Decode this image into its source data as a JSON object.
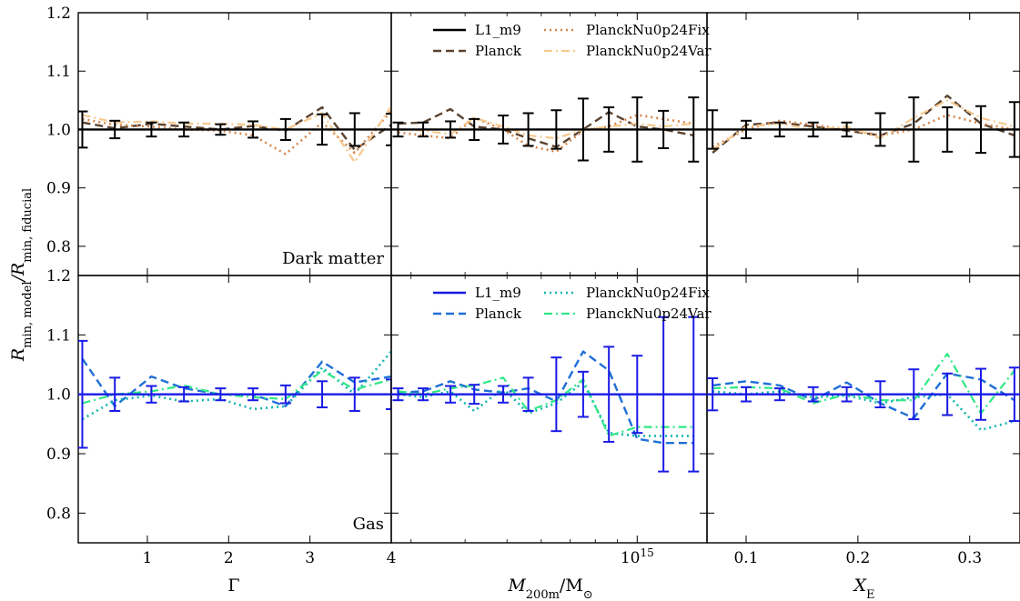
{
  "figure": {
    "ylabel_main": "R",
    "ylabel_sub": "min, model",
    "ylabel_mid": "/R",
    "ylabel_sub2": "min, fiducial",
    "colors": {
      "dm": {
        "L1_m9": "#000000",
        "Planck": "#5b4330",
        "PlanckNu0p24Fix": "#d5874d",
        "PlanckNu0p24Var": "#f6c98e"
      },
      "gas": {
        "L1_m9": "#1a1ae6",
        "Planck": "#1f6fd6",
        "PlanckNu0p24Fix": "#12b5b0",
        "PlanckNu0p24Var": "#2ee884"
      }
    }
  },
  "chart_data": [
    {
      "type": "line",
      "panel": "dark-matter-gamma",
      "row_label": "Dark matter",
      "xlabel": "",
      "ylabel": "",
      "xlim": [
        0.15,
        4.0
      ],
      "ylim": [
        0.75,
        1.2
      ],
      "x_scale": "linear",
      "x_ticks": [
        "1",
        "2",
        "3",
        "4"
      ],
      "y_ticks": [
        "0.8",
        "0.9",
        "1.0",
        "1.1",
        "1.2"
      ],
      "x": [
        0.2,
        0.6,
        1.05,
        1.45,
        1.9,
        2.3,
        2.7,
        3.15,
        3.55,
        4.0
      ],
      "series": [
        {
          "name": "L1_m9",
          "style": "solid",
          "values": [
            1.0,
            1.0,
            1.0,
            1.0,
            1.0,
            1.0,
            1.0,
            1.0,
            1.0,
            1.0
          ],
          "err": [
            0.031,
            0.015,
            0.012,
            0.012,
            0.009,
            0.014,
            0.018,
            0.026,
            0.028,
            0.027
          ]
        },
        {
          "name": "Planck",
          "style": "dashed",
          "values": [
            1.012,
            1.002,
            1.01,
            1.005,
            1.0,
            1.006,
            0.998,
            1.038,
            0.965,
            1.008
          ]
        },
        {
          "name": "PlanckNu0p24Fix",
          "style": "dotted",
          "values": [
            1.018,
            1.008,
            1.005,
            1.0,
            0.998,
            0.99,
            0.958,
            1.012,
            0.96,
            1.032
          ]
        },
        {
          "name": "PlanckNu0p24Var",
          "style": "dashdot",
          "values": [
            1.025,
            1.012,
            1.014,
            1.01,
            1.01,
            1.008,
            1.0,
            1.028,
            0.944,
            1.04
          ]
        }
      ]
    },
    {
      "type": "line",
      "panel": "dark-matter-mass",
      "row_label": "",
      "legend": "upper-center",
      "xlabel": "",
      "ylabel": "",
      "xlim": [
        270000000000000.0,
        1450000000000000.0
      ],
      "ylim": [
        0.75,
        1.2
      ],
      "x_scale": "log",
      "x_ticks": [
        "10^15"
      ],
      "y_ticks": [
        "0.8",
        "0.9",
        "1.0",
        "1.1",
        "1.2"
      ],
      "x": [
        280000000000000.0,
        320000000000000.0,
        370000000000000.0,
        420000000000000.0,
        490000000000000.0,
        560000000000000.0,
        650000000000000.0,
        750000000000000.0,
        860000000000000.0,
        1000000000000000.0,
        1150000000000000.0,
        1350000000000000.0
      ],
      "series": [
        {
          "name": "L1_m9",
          "style": "solid",
          "values": [
            1.0,
            1.0,
            1.0,
            1.0,
            1.0,
            1.0,
            1.0,
            1.0,
            1.0,
            1.0,
            1.0,
            1.0
          ],
          "err": [
            0.012,
            0.012,
            0.014,
            0.018,
            0.024,
            0.028,
            0.033,
            0.053,
            0.038,
            0.055,
            0.032,
            0.055
          ]
        },
        {
          "name": "Planck",
          "style": "dashed",
          "values": [
            1.01,
            1.012,
            1.035,
            1.005,
            1.0,
            0.985,
            0.97,
            1.0,
            1.03,
            1.005,
            1.0,
            0.99
          ]
        },
        {
          "name": "PlanckNu0p24Fix",
          "style": "dotted",
          "values": [
            0.995,
            0.99,
            0.985,
            1.02,
            1.0,
            0.972,
            0.962,
            0.998,
            1.005,
            1.025,
            1.018,
            1.01
          ]
        },
        {
          "name": "PlanckNu0p24Var",
          "style": "dashdot",
          "values": [
            1.0,
            0.998,
            0.992,
            1.02,
            1.005,
            0.99,
            0.985,
            1.0,
            1.005,
            1.01,
            1.005,
            1.01
          ]
        }
      ]
    },
    {
      "type": "line",
      "panel": "dark-matter-xe",
      "row_label": "",
      "xlabel": "",
      "ylabel": "",
      "xlim": [
        0.065,
        0.345
      ],
      "ylim": [
        0.75,
        1.2
      ],
      "x_scale": "linear",
      "x_ticks": [
        "0.1",
        "0.2",
        "0.3"
      ],
      "y_ticks": [
        "0.8",
        "0.9",
        "1.0",
        "1.1",
        "1.2"
      ],
      "x": [
        0.07,
        0.1,
        0.13,
        0.16,
        0.19,
        0.22,
        0.25,
        0.28,
        0.31,
        0.34
      ],
      "series": [
        {
          "name": "L1_m9",
          "style": "solid",
          "values": [
            1.0,
            1.0,
            1.0,
            1.0,
            1.0,
            1.0,
            1.0,
            1.0,
            1.0,
            1.0
          ],
          "err": [
            0.033,
            0.015,
            0.012,
            0.012,
            0.012,
            0.028,
            0.055,
            0.038,
            0.04,
            0.047
          ]
        },
        {
          "name": "Planck",
          "style": "dashed",
          "values": [
            0.96,
            1.008,
            1.012,
            1.005,
            0.998,
            0.99,
            1.01,
            1.058,
            1.01,
            0.99
          ]
        },
        {
          "name": "PlanckNu0p24Fix",
          "style": "dotted",
          "values": [
            0.97,
            1.0,
            1.015,
            1.008,
            1.0,
            0.99,
            1.0,
            1.025,
            1.01,
            1.0
          ]
        },
        {
          "name": "PlanckNu0p24Var",
          "style": "dashdot",
          "values": [
            0.965,
            1.005,
            1.01,
            1.0,
            1.005,
            0.985,
            1.02,
            1.05,
            1.02,
            1.005
          ]
        }
      ]
    },
    {
      "type": "line",
      "panel": "gas-gamma",
      "row_label": "Gas",
      "xlabel": "Γ",
      "ylabel": "",
      "xlim": [
        0.15,
        4.0
      ],
      "ylim": [
        0.75,
        1.2
      ],
      "x_scale": "linear",
      "x_ticks": [
        "1",
        "2",
        "3",
        "4"
      ],
      "y_ticks": [
        "0.8",
        "0.9",
        "1.0",
        "1.1",
        "1.2"
      ],
      "x": [
        0.2,
        0.6,
        1.05,
        1.45,
        1.9,
        2.3,
        2.7,
        3.15,
        3.55,
        4.0
      ],
      "series": [
        {
          "name": "L1_m9",
          "style": "solid",
          "values": [
            1.0,
            1.0,
            1.0,
            1.0,
            1.0,
            1.0,
            1.0,
            1.0,
            1.0,
            1.0
          ],
          "err": [
            0.09,
            0.028,
            0.014,
            0.012,
            0.01,
            0.01,
            0.015,
            0.022,
            0.028,
            0.025
          ]
        },
        {
          "name": "Planck",
          "style": "dashed",
          "values": [
            1.06,
            0.98,
            1.03,
            1.01,
            1.0,
            1.0,
            0.98,
            1.055,
            1.02,
            1.03
          ]
        },
        {
          "name": "PlanckNu0p24Fix",
          "style": "dotted",
          "values": [
            0.958,
            0.99,
            0.998,
            0.988,
            0.992,
            0.975,
            0.98,
            1.045,
            1.0,
            1.072
          ]
        },
        {
          "name": "PlanckNu0p24Var",
          "style": "dashdot",
          "values": [
            0.985,
            1.0,
            1.005,
            1.015,
            1.0,
            0.995,
            0.992,
            1.04,
            1.008,
            1.025
          ]
        }
      ]
    },
    {
      "type": "line",
      "panel": "gas-mass",
      "row_label": "",
      "legend": "upper-center",
      "xlabel": "M200m/M⊙",
      "ylabel": "",
      "xlim": [
        270000000000000.0,
        1450000000000000.0
      ],
      "ylim": [
        0.75,
        1.2
      ],
      "x_scale": "log",
      "x_ticks": [
        "10^15"
      ],
      "y_ticks": [
        "0.8",
        "0.9",
        "1.0",
        "1.1",
        "1.2"
      ],
      "x": [
        280000000000000.0,
        320000000000000.0,
        370000000000000.0,
        420000000000000.0,
        490000000000000.0,
        560000000000000.0,
        650000000000000.0,
        750000000000000.0,
        860000000000000.0,
        1000000000000000.0,
        1150000000000000.0,
        1350000000000000.0
      ],
      "series": [
        {
          "name": "L1_m9",
          "style": "solid",
          "values": [
            1.0,
            1.0,
            1.0,
            1.0,
            1.0,
            1.0,
            1.0,
            1.0,
            1.0,
            1.0,
            1.0,
            1.0
          ],
          "err": [
            0.01,
            0.01,
            0.014,
            0.016,
            0.014,
            0.028,
            0.062,
            0.038,
            0.08,
            0.065,
            0.13,
            0.13
          ]
        },
        {
          "name": "Planck",
          "style": "dashed",
          "values": [
            1.003,
            1.005,
            1.022,
            1.008,
            1.003,
            1.01,
            0.988,
            1.072,
            1.04,
            0.925,
            0.918,
            0.918
          ]
        },
        {
          "name": "PlanckNu0p24Fix",
          "style": "dotted",
          "values": [
            1.0,
            0.995,
            1.005,
            0.972,
            1.01,
            0.968,
            0.985,
            1.02,
            0.935,
            0.93,
            0.93,
            0.93
          ]
        },
        {
          "name": "PlanckNu0p24Var",
          "style": "dashdot",
          "values": [
            1.005,
            1.0,
            1.01,
            1.015,
            1.028,
            0.972,
            0.99,
            1.025,
            0.93,
            0.945,
            0.945,
            0.945
          ]
        }
      ]
    },
    {
      "type": "line",
      "panel": "gas-xe",
      "row_label": "",
      "xlabel": "XE",
      "ylabel": "",
      "xlim": [
        0.065,
        0.345
      ],
      "ylim": [
        0.75,
        1.2
      ],
      "x_scale": "linear",
      "x_ticks": [
        "0.1",
        "0.2",
        "0.3"
      ],
      "y_ticks": [
        "0.8",
        "0.9",
        "1.0",
        "1.1",
        "1.2"
      ],
      "x": [
        0.07,
        0.1,
        0.13,
        0.16,
        0.19,
        0.22,
        0.25,
        0.28,
        0.31,
        0.34
      ],
      "series": [
        {
          "name": "L1_m9",
          "style": "solid",
          "values": [
            1.0,
            1.0,
            1.0,
            1.0,
            1.0,
            1.0,
            1.0,
            1.0,
            1.0,
            1.0
          ],
          "err": [
            0.027,
            0.012,
            0.01,
            0.012,
            0.012,
            0.022,
            0.042,
            0.035,
            0.043,
            0.045
          ]
        },
        {
          "name": "Planck",
          "style": "dashed",
          "values": [
            1.015,
            1.022,
            1.015,
            0.99,
            1.02,
            0.985,
            0.96,
            1.035,
            1.025,
            0.99
          ]
        },
        {
          "name": "PlanckNu0p24Fix",
          "style": "dotted",
          "values": [
            1.005,
            1.0,
            1.005,
            0.995,
            0.998,
            0.985,
            0.995,
            1.0,
            0.94,
            0.955
          ]
        },
        {
          "name": "PlanckNu0p24Var",
          "style": "dashdot",
          "values": [
            1.01,
            1.012,
            1.01,
            0.985,
            1.0,
            0.99,
            0.99,
            1.068,
            0.968,
            1.04
          ]
        }
      ]
    }
  ]
}
